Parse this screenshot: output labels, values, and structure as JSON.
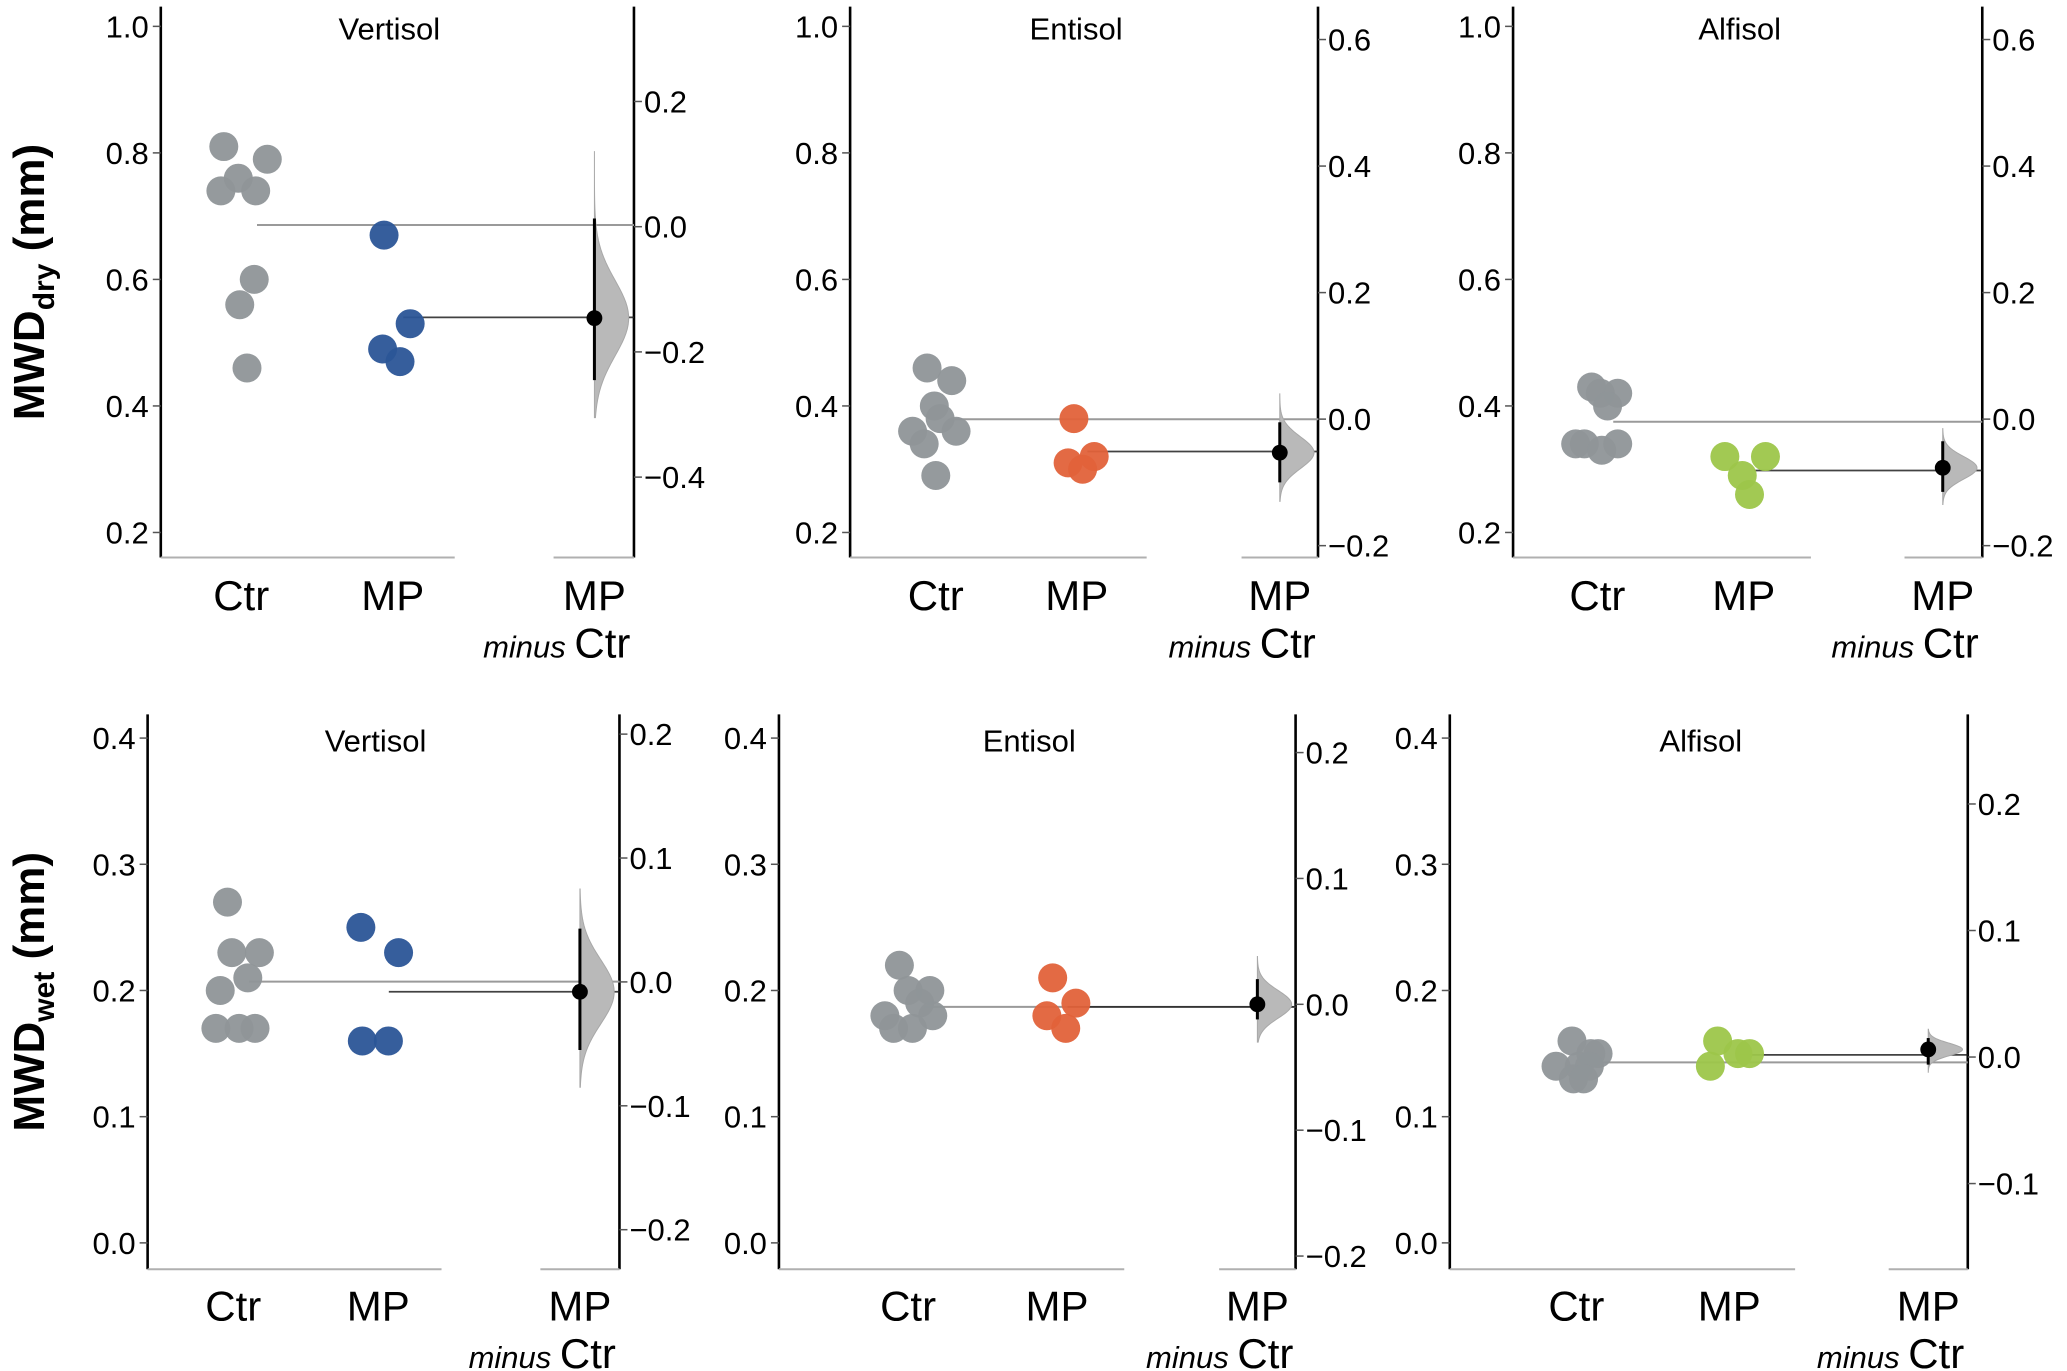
{
  "figure": {
    "row_labels": [
      {
        "main": "MWD",
        "sub": "dry",
        "unit": " (mm)"
      },
      {
        "main": "MWD",
        "sub": "wet",
        "unit": " (mm)"
      }
    ]
  },
  "chart_data": [
    {
      "type": "scatter",
      "row": 0,
      "col": 0,
      "title": "Vertisol",
      "ylabel": "MWDdry (mm)",
      "categories": [
        "Ctr",
        "MP",
        "MP minus Ctr"
      ],
      "category_labels": [
        {
          "main": "Ctr"
        },
        {
          "main": "MP"
        },
        {
          "main": "MP",
          "sub_italic": "minus",
          "sub": "Ctr"
        }
      ],
      "ylim": [
        0.16,
        1.03
      ],
      "yticks": [
        0.2,
        0.4,
        0.6,
        0.8,
        1.0
      ],
      "ytick_labels": [
        "0.2",
        "0.4",
        "0.6",
        "0.8",
        "1.0"
      ],
      "diff_ylim": [
        -0.53,
        0.35
      ],
      "diff_yticks": [
        -0.4,
        -0.2,
        0.0,
        0.2
      ],
      "diff_ytick_labels": [
        "−0.4",
        "−0.2",
        "0.0",
        "0.2"
      ],
      "series": [
        {
          "name": "Ctr",
          "color": "#8f9598",
          "values": [
            0.81,
            0.76,
            0.79,
            0.74,
            0.74,
            0.6,
            0.56,
            0.46
          ],
          "jitter": [
            -0.6,
            -0.1,
            0.9,
            -0.7,
            0.5,
            0.45,
            -0.05,
            0.2
          ]
        },
        {
          "name": "MP",
          "color": "#2b5597",
          "values": [
            0.67,
            0.53,
            0.49,
            0.47
          ],
          "jitter": [
            -0.3,
            0.6,
            -0.35,
            0.25
          ]
        }
      ],
      "ctr_mean": 0.686,
      "mp_mean": 0.54,
      "diff": {
        "mean": -0.146,
        "ci": [
          -0.245,
          0.013
        ],
        "dist_range": [
          -0.305,
          0.12
        ],
        "dist_sd": 0.06
      }
    },
    {
      "type": "scatter",
      "row": 0,
      "col": 1,
      "title": "Entisol",
      "ylabel": "MWDdry (mm)",
      "categories": [
        "Ctr",
        "MP",
        "MP minus Ctr"
      ],
      "category_labels": [
        {
          "main": "Ctr"
        },
        {
          "main": "MP"
        },
        {
          "main": "MP",
          "sub_italic": "minus",
          "sub": "Ctr"
        }
      ],
      "ylim": [
        0.16,
        1.03
      ],
      "yticks": [
        0.2,
        0.4,
        0.6,
        0.8,
        1.0
      ],
      "ytick_labels": [
        "0.2",
        "0.4",
        "0.6",
        "0.8",
        "1.0"
      ],
      "diff_ylim": [
        -0.22,
        0.65
      ],
      "diff_yticks": [
        -0.2,
        0.0,
        0.2,
        0.4,
        0.6
      ],
      "diff_ytick_labels": [
        "−0.2",
        "0.0",
        "0.2",
        "0.4",
        "0.6"
      ],
      "series": [
        {
          "name": "Ctr",
          "color": "#8f9598",
          "values": [
            0.46,
            0.44,
            0.4,
            0.38,
            0.36,
            0.36,
            0.34,
            0.29
          ],
          "jitter": [
            -0.3,
            0.55,
            -0.05,
            0.15,
            -0.8,
            0.7,
            -0.4,
            0.0
          ]
        },
        {
          "name": "MP",
          "color": "#e2623a",
          "values": [
            0.38,
            0.32,
            0.31,
            0.3
          ],
          "jitter": [
            -0.1,
            0.6,
            -0.3,
            0.2
          ]
        }
      ],
      "ctr_mean": 0.379,
      "mp_mean": 0.328,
      "diff": {
        "mean": -0.053,
        "ci": [
          -0.1,
          -0.005
        ],
        "dist_range": [
          -0.13,
          0.04
        ],
        "dist_sd": 0.025
      }
    },
    {
      "type": "scatter",
      "row": 0,
      "col": 2,
      "title": "Alfisol",
      "ylabel": "MWDdry (mm)",
      "categories": [
        "Ctr",
        "MP",
        "MP minus Ctr"
      ],
      "category_labels": [
        {
          "main": "Ctr"
        },
        {
          "main": "MP"
        },
        {
          "main": "MP",
          "sub_italic": "minus",
          "sub": "Ctr"
        }
      ],
      "ylim": [
        0.16,
        1.03
      ],
      "yticks": [
        0.2,
        0.4,
        0.6,
        0.8,
        1.0
      ],
      "ytick_labels": [
        "0.2",
        "0.4",
        "0.6",
        "0.8",
        "1.0"
      ],
      "diff_ylim": [
        -0.22,
        0.65
      ],
      "diff_yticks": [
        -0.2,
        0.0,
        0.2,
        0.4,
        0.6
      ],
      "diff_ytick_labels": [
        "−0.2",
        "0.0",
        "0.2",
        "0.4",
        "0.6"
      ],
      "series": [
        {
          "name": "Ctr",
          "color": "#8f9598",
          "values": [
            0.43,
            0.42,
            0.42,
            0.4,
            0.34,
            0.34,
            0.33,
            0.34
          ],
          "jitter": [
            -0.2,
            0.7,
            0.1,
            0.35,
            -0.75,
            -0.45,
            0.15,
            0.7
          ]
        },
        {
          "name": "MP",
          "color": "#9dc64a",
          "values": [
            0.32,
            0.32,
            0.29,
            0.26
          ],
          "jitter": [
            -0.65,
            0.75,
            -0.05,
            0.2
          ]
        }
      ],
      "ctr_mean": 0.375,
      "mp_mean": 0.298,
      "diff": {
        "mean": -0.077,
        "ci": [
          -0.115,
          -0.035
        ],
        "dist_range": [
          -0.135,
          -0.015
        ],
        "dist_sd": 0.018
      }
    },
    {
      "type": "scatter",
      "row": 1,
      "col": 0,
      "title": "Vertisol",
      "ylabel": "MWDwet (mm)",
      "categories": [
        "Ctr",
        "MP",
        "MP minus Ctr"
      ],
      "category_labels": [
        {
          "main": "Ctr"
        },
        {
          "main": "MP"
        },
        {
          "main": "MP",
          "sub_italic": "minus",
          "sub": "Ctr"
        }
      ],
      "ylim": [
        -0.02,
        0.42
      ],
      "yticks": [
        0.0,
        0.1,
        0.2,
        0.3,
        0.4
      ],
      "ytick_labels": [
        "0.0",
        "0.1",
        "0.2",
        "0.3",
        "0.4"
      ],
      "diff_ylim": [
        -0.23,
        0.21
      ],
      "diff_yticks": [
        -0.2,
        -0.1,
        0.0,
        0.1,
        0.2
      ],
      "diff_ytick_labels": [
        "−0.2",
        "−0.1",
        "0.0",
        "0.1",
        "0.2"
      ],
      "series": [
        {
          "name": "Ctr",
          "color": "#8f9598",
          "values": [
            0.27,
            0.23,
            0.23,
            0.21,
            0.2,
            0.17,
            0.17,
            0.17
          ],
          "jitter": [
            -0.2,
            -0.05,
            0.9,
            0.5,
            -0.45,
            -0.6,
            0.2,
            0.75
          ]
        },
        {
          "name": "MP",
          "color": "#2b5597",
          "values": [
            0.25,
            0.23,
            0.16,
            0.16
          ],
          "jitter": [
            -0.6,
            0.7,
            -0.55,
            0.35
          ]
        }
      ],
      "ctr_mean": 0.207,
      "mp_mean": 0.199,
      "diff": {
        "mean": -0.008,
        "ci": [
          -0.055,
          0.043
        ],
        "dist_range": [
          -0.085,
          0.075
        ],
        "dist_sd": 0.026
      }
    },
    {
      "type": "scatter",
      "row": 1,
      "col": 1,
      "title": "Entisol",
      "ylabel": "MWDwet (mm)",
      "categories": [
        "Ctr",
        "MP",
        "MP minus Ctr"
      ],
      "category_labels": [
        {
          "main": "Ctr"
        },
        {
          "main": "MP"
        },
        {
          "main": "MP",
          "sub_italic": "minus",
          "sub": "Ctr"
        }
      ],
      "ylim": [
        -0.02,
        0.42
      ],
      "yticks": [
        0.0,
        0.1,
        0.2,
        0.3,
        0.4
      ],
      "ytick_labels": [
        "0.0",
        "0.1",
        "0.2",
        "0.3",
        "0.4"
      ],
      "diff_ylim": [
        -0.21,
        0.23
      ],
      "diff_yticks": [
        -0.2,
        -0.1,
        0.0,
        0.1,
        0.2
      ],
      "diff_ytick_labels": [
        "−0.2",
        "−0.1",
        "0.0",
        "0.1",
        "0.2"
      ],
      "series": [
        {
          "name": "Ctr",
          "color": "#8f9598",
          "values": [
            0.22,
            0.2,
            0.2,
            0.19,
            0.18,
            0.18,
            0.17,
            0.17
          ],
          "jitter": [
            -0.3,
            0.75,
            0.0,
            0.4,
            -0.8,
            0.85,
            -0.5,
            0.15
          ]
        },
        {
          "name": "MP",
          "color": "#e2623a",
          "values": [
            0.21,
            0.19,
            0.18,
            0.17
          ],
          "jitter": [
            -0.15,
            0.65,
            -0.35,
            0.3
          ]
        }
      ],
      "ctr_mean": 0.187,
      "mp_mean": 0.187,
      "diff": {
        "mean": 0.0,
        "ci": [
          -0.012,
          0.02
        ],
        "dist_range": [
          -0.03,
          0.038
        ],
        "dist_sd": 0.011
      }
    },
    {
      "type": "scatter",
      "row": 1,
      "col": 2,
      "title": "Alfisol",
      "ylabel": "MWDwet (mm)",
      "categories": [
        "Ctr",
        "MP",
        "MP minus Ctr"
      ],
      "category_labels": [
        {
          "main": "Ctr"
        },
        {
          "main": "MP"
        },
        {
          "main": "MP",
          "sub_italic": "minus",
          "sub": "Ctr"
        }
      ],
      "ylim": [
        -0.02,
        0.42
      ],
      "yticks": [
        0.0,
        0.1,
        0.2,
        0.3,
        0.4
      ],
      "ytick_labels": [
        "0.0",
        "0.1",
        "0.2",
        "0.3",
        "0.4"
      ],
      "diff_ylim": [
        -0.17,
        0.27
      ],
      "diff_yticks": [
        -0.1,
        0.0,
        0.1,
        0.2
      ],
      "diff_ytick_labels": [
        "−0.1",
        "0.0",
        "0.1",
        "0.2"
      ],
      "series": [
        {
          "name": "Ctr",
          "color": "#8f9598",
          "values": [
            0.16,
            0.15,
            0.15,
            0.14,
            0.14,
            0.14,
            0.13,
            0.13
          ],
          "jitter": [
            -0.15,
            0.75,
            0.5,
            -0.7,
            0.1,
            0.45,
            -0.1,
            0.25
          ]
        },
        {
          "name": "MP",
          "color": "#9dc64a",
          "values": [
            0.16,
            0.15,
            0.14,
            0.15
          ],
          "jitter": [
            -0.4,
            0.7,
            -0.65,
            0.3
          ]
        }
      ],
      "ctr_mean": 0.143,
      "mp_mean": 0.149,
      "diff": {
        "mean": 0.006,
        "ci": [
          -0.006,
          0.015
        ],
        "dist_range": [
          -0.012,
          0.022
        ],
        "dist_sd": 0.005
      }
    }
  ]
}
